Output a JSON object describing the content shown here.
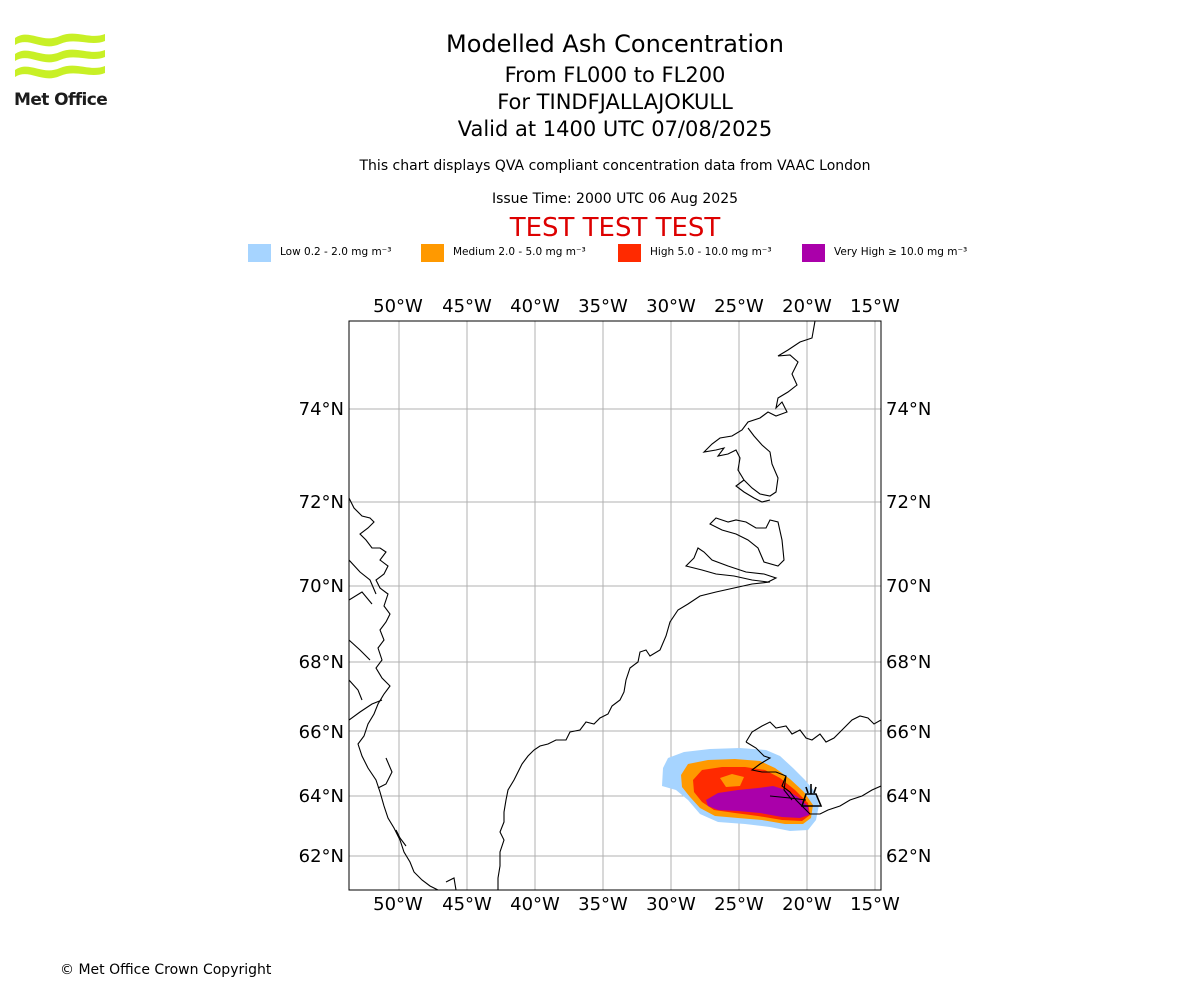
{
  "header": {
    "logo_text": "Met Office",
    "title": "Modelled Ash Concentration",
    "level_range": "From FL000 to FL200",
    "volcano": "For TINDFJALLAJOKULL",
    "valid_time": "Valid at 1400 UTC 07/08/2025",
    "compliance_note": "This chart displays QVA compliant concentration data from VAAC London",
    "issue_time": "Issue Time: 2000 UTC 06 Aug 2025",
    "test_banner": "TEST TEST TEST"
  },
  "legend": [
    {
      "label": "Low 0.2 - 2.0 mg m⁻³",
      "color": "#a6d4ff"
    },
    {
      "label": "Medium 2.0 - 5.0 mg m⁻³",
      "color": "#ff9900"
    },
    {
      "label": "High 5.0 - 10.0 mg m⁻³",
      "color": "#ff2a00"
    },
    {
      "label": "Very High ≥ 10.0 mg m⁻³",
      "color": "#aa00aa"
    }
  ],
  "map": {
    "lon_labels": [
      "50°W",
      "45°W",
      "40°W",
      "35°W",
      "30°W",
      "25°W",
      "20°W",
      "15°W"
    ],
    "lat_labels": [
      "74°N",
      "72°N",
      "70°N",
      "68°N",
      "66°N",
      "64°N",
      "62°N"
    ],
    "gridline_color": "#b0b0b0",
    "coastline_color": "#000000",
    "volcano_marker": "volcano-icon"
  },
  "footer": {
    "copyright": "© Met Office Crown Copyright"
  }
}
